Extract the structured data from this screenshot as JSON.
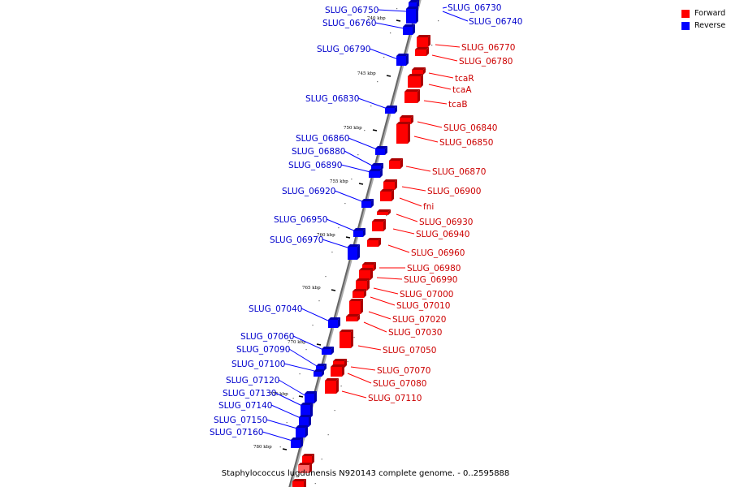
{
  "caption": "Staphylococcus lugdunensis N920143 complete genome. - 0..2595888",
  "legend": [
    {
      "label": "Forward",
      "color": "#ff0000"
    },
    {
      "label": "Reverse",
      "color": "#0000ff"
    }
  ],
  "colors": {
    "forward": "#ff0000",
    "reverse": "#0000ff",
    "forward_label": "#cc0000",
    "reverse_label": "#0000cc"
  },
  "ticks": [
    "740 kbp",
    "745 kbp",
    "750 kbp",
    "755 kbp",
    "760 kbp",
    "765 kbp",
    "770 kbp",
    "775 kbp",
    "780 kbp"
  ],
  "reverse_genes": [
    "SLUG_06730",
    "SLUG_06740",
    "SLUG_06750",
    "SLUG_06760",
    "SLUG_06790",
    "SLUG_06830",
    "SLUG_06860",
    "SLUG_06880",
    "SLUG_06890",
    "SLUG_06920",
    "SLUG_06950",
    "SLUG_06970",
    "SLUG_07040",
    "SLUG_07060",
    "SLUG_07090",
    "SLUG_07100",
    "SLUG_07120",
    "SLUG_07130",
    "SLUG_07140",
    "SLUG_07150",
    "SLUG_07160"
  ],
  "forward_genes": [
    "SLUG_06770",
    "SLUG_06780",
    "tcaR",
    "tcaA",
    "tcaB",
    "SLUG_06840",
    "SLUG_06850",
    "SLUG_06870",
    "SLUG_06900",
    "fni",
    "SLUG_06930",
    "SLUG_06940",
    "SLUG_06960",
    "SLUG_06980",
    "SLUG_06990",
    "SLUG_07000",
    "SLUG_07010",
    "SLUG_07020",
    "SLUG_07030",
    "SLUG_07050",
    "SLUG_07070",
    "SLUG_07080",
    "SLUG_07110"
  ]
}
